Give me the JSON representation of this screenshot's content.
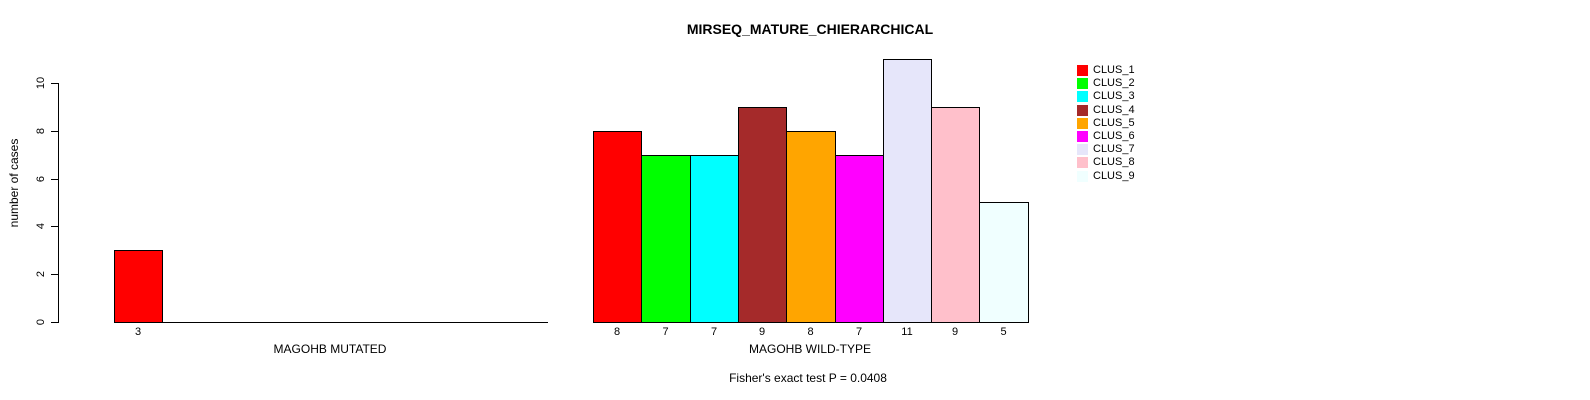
{
  "chart_data": {
    "type": "bar",
    "title": "MIRSEQ_MATURE_CHIERARCHICAL",
    "ylabel": "number of cases",
    "ylim": [
      0,
      10
    ],
    "yticks": [
      0,
      2,
      4,
      6,
      8,
      10
    ],
    "grid": false,
    "legend_position": "right",
    "legend": [
      "CLUS_1",
      "CLUS_2",
      "CLUS_3",
      "CLUS_4",
      "CLUS_5",
      "CLUS_6",
      "CLUS_7",
      "CLUS_8",
      "CLUS_9"
    ],
    "colors": [
      "#ff0000",
      "#00ff00",
      "#00ffff",
      "#a52a2a",
      "#ffa500",
      "#ff00ff",
      "#e6e6fa",
      "#ffc0cb",
      "#f0ffff"
    ],
    "groups": [
      {
        "label": "MAGOHB MUTATED",
        "values": [
          3,
          0,
          0,
          0,
          0,
          0,
          0,
          0,
          0
        ]
      },
      {
        "label": "MAGOHB WILD-TYPE",
        "values": [
          8,
          7,
          7,
          9,
          8,
          7,
          11,
          9,
          5
        ]
      }
    ],
    "bar_value_labels_shown": true,
    "annotation": "Fisher's exact test P = 0.0408"
  }
}
